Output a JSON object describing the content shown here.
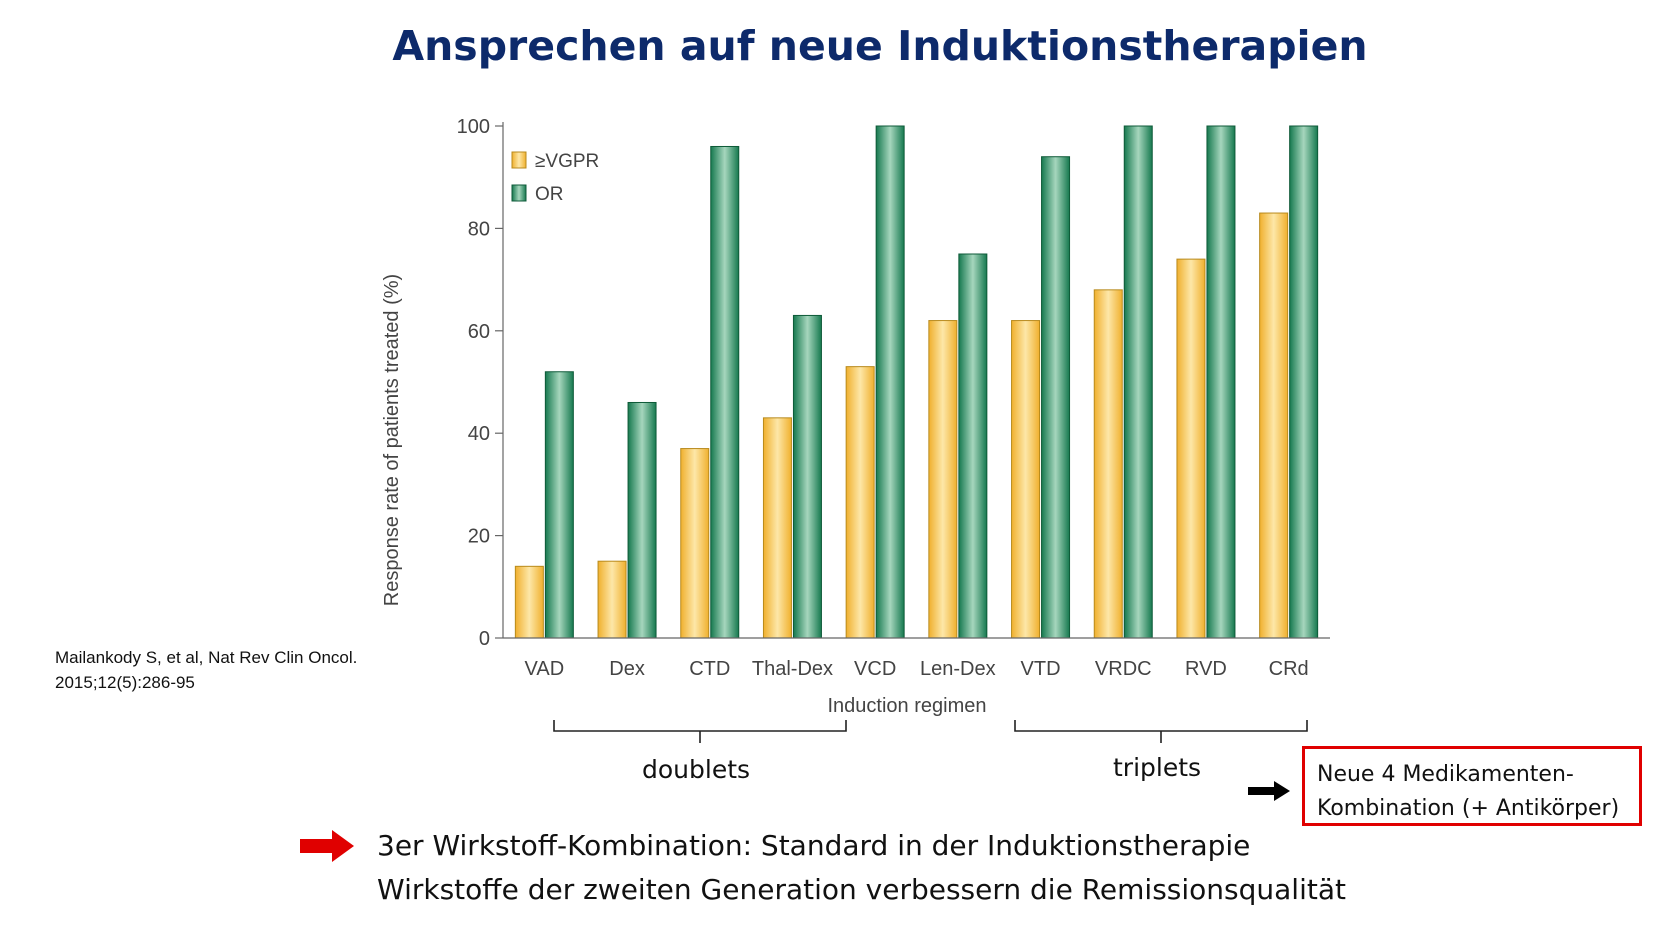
{
  "title": "Ansprechen auf neue Induktionstherapien",
  "citation": {
    "line1": "Mailankody S, et al, Nat Rev Clin Oncol.",
    "line2": "2015;12(5):286-95"
  },
  "groups": {
    "doublets": "doublets",
    "triplets": "triplets"
  },
  "note_box": {
    "line1": "Neue 4 Medikamenten-",
    "line2": "Kombination (+ Antikörper)"
  },
  "conclusion": {
    "line1": "3er Wirkstoff-Kombination: Standard in der Induktionstherapie",
    "line2": "Wirkstoffe der zweiten Generation verbessern die Remissionsqualität"
  },
  "icons": {
    "conclusion_arrow": "right-arrow-icon",
    "note_arrow": "right-arrow-icon"
  },
  "colors": {
    "title": "#0d2a6b",
    "vgpr": "#f5c04a",
    "or": "#1f8a5e",
    "note_border": "#e00000",
    "red_arrow": "#e00000"
  },
  "chart_data": {
    "type": "bar",
    "categories": [
      "VAD",
      "Dex",
      "CTD",
      "Thal-Dex",
      "VCD",
      "Len-Dex",
      "VTD",
      "VRDC",
      "RVD",
      "CRd"
    ],
    "series": [
      {
        "name": "≥VGPR",
        "values": [
          14,
          15,
          37,
          43,
          53,
          62,
          62,
          68,
          74,
          83
        ]
      },
      {
        "name": "OR",
        "values": [
          52,
          46,
          96,
          63,
          100,
          75,
          94,
          100,
          100,
          100
        ]
      }
    ],
    "title": "",
    "xlabel": "Induction regimen",
    "ylabel": "Response rate of patients treated (%)",
    "ylim": [
      0,
      100
    ],
    "yticks": [
      0,
      20,
      40,
      60,
      80,
      100
    ],
    "grid": false,
    "legend": "top-left"
  }
}
